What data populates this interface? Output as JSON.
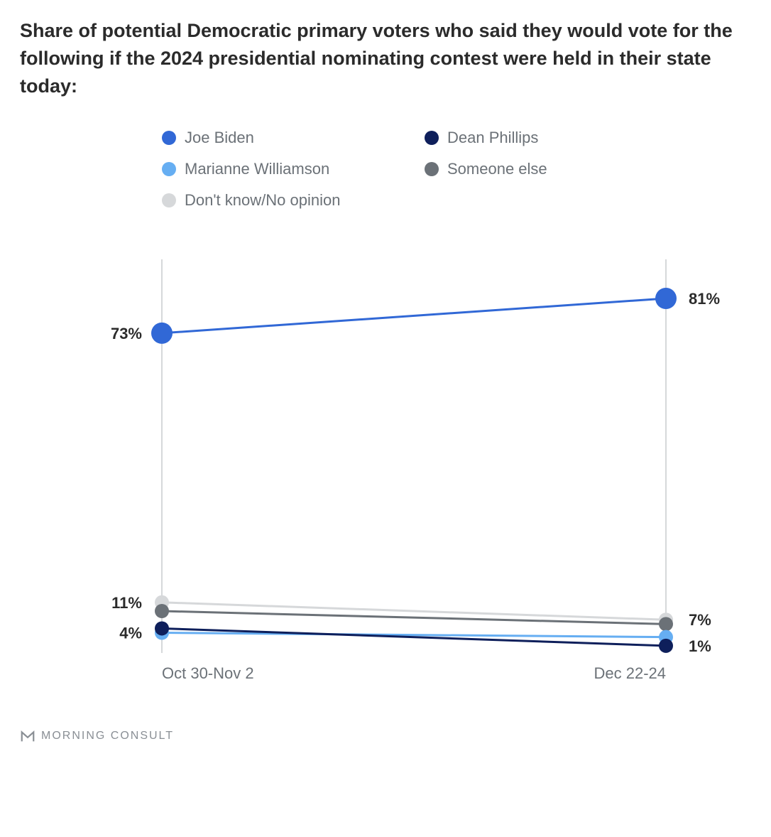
{
  "title": "Share of potential Democratic primary voters who said they would vote for the following if the 2024 presidential nominating contest were held in their state today:",
  "chart": {
    "type": "line",
    "background_color": "#ffffff",
    "grid_color": "#d6d8da",
    "ylim": [
      0,
      90
    ],
    "x_positions": [
      0,
      1
    ],
    "x_labels": [
      "Oct 30-Nov 2",
      "Dec 22-24"
    ],
    "axis_label_color": "#6b7177",
    "axis_label_fontsize": 22,
    "value_label_fontsize": 22,
    "value_label_weight": 700,
    "line_width": 3,
    "marker_radius": 15,
    "marker_radius_small": 10,
    "series": [
      {
        "key": "dont_know",
        "name": "Don't know/No opinion",
        "color": "#d6d8da",
        "values": [
          11,
          7
        ]
      },
      {
        "key": "someone_else",
        "name": "Someone else",
        "color": "#6b7177",
        "values": [
          9,
          6
        ]
      },
      {
        "key": "williamson",
        "name": "Marianne Williamson",
        "color": "#66aef2",
        "values": [
          4,
          3
        ]
      },
      {
        "key": "phillips",
        "name": "Dean Phillips",
        "color": "#0e1f5b",
        "values": [
          5,
          1
        ]
      },
      {
        "key": "biden",
        "name": "Joe Biden",
        "color": "#3168d6",
        "values": [
          73,
          81
        ]
      }
    ],
    "left_labels": [
      {
        "text": "73%",
        "y": 73
      },
      {
        "text": "11%",
        "y": 11
      },
      {
        "text": "4%",
        "y": 4
      }
    ],
    "right_labels": [
      {
        "text": "81%",
        "y": 81
      },
      {
        "text": "7%",
        "y": 7
      },
      {
        "text": "1%",
        "y": 1
      }
    ],
    "legend_order": [
      "biden",
      "phillips",
      "williamson",
      "someone_else",
      "dont_know"
    ]
  },
  "footer": {
    "brand": "MORNING CONSULT"
  }
}
